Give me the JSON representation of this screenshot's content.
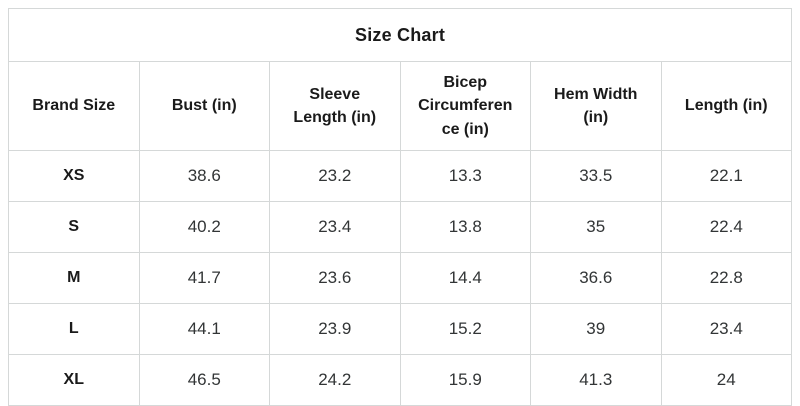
{
  "title": "Size Chart",
  "colors": {
    "background": "#ffffff",
    "border": "#d5d8d8",
    "heading_text": "#1a1a1a",
    "value_text": "#323536"
  },
  "chart_data": {
    "type": "table",
    "title": "Size Chart",
    "columns": [
      "Brand Size",
      "Bust (in)",
      "Sleeve Length (in)",
      "Bicep Circumference (in)",
      "Hem Width (in)",
      "Length (in)"
    ],
    "rows": [
      {
        "size": "XS",
        "values": [
          "38.6",
          "23.2",
          "13.3",
          "33.5",
          "22.1"
        ]
      },
      {
        "size": "S",
        "values": [
          "40.2",
          "23.4",
          "13.8",
          "35",
          "22.4"
        ]
      },
      {
        "size": "M",
        "values": [
          "41.7",
          "23.6",
          "14.4",
          "36.6",
          "22.8"
        ]
      },
      {
        "size": "L",
        "values": [
          "44.1",
          "23.9",
          "15.2",
          "39",
          "23.4"
        ]
      },
      {
        "size": "XL",
        "values": [
          "46.5",
          "24.2",
          "15.9",
          "41.3",
          "24"
        ]
      }
    ]
  }
}
